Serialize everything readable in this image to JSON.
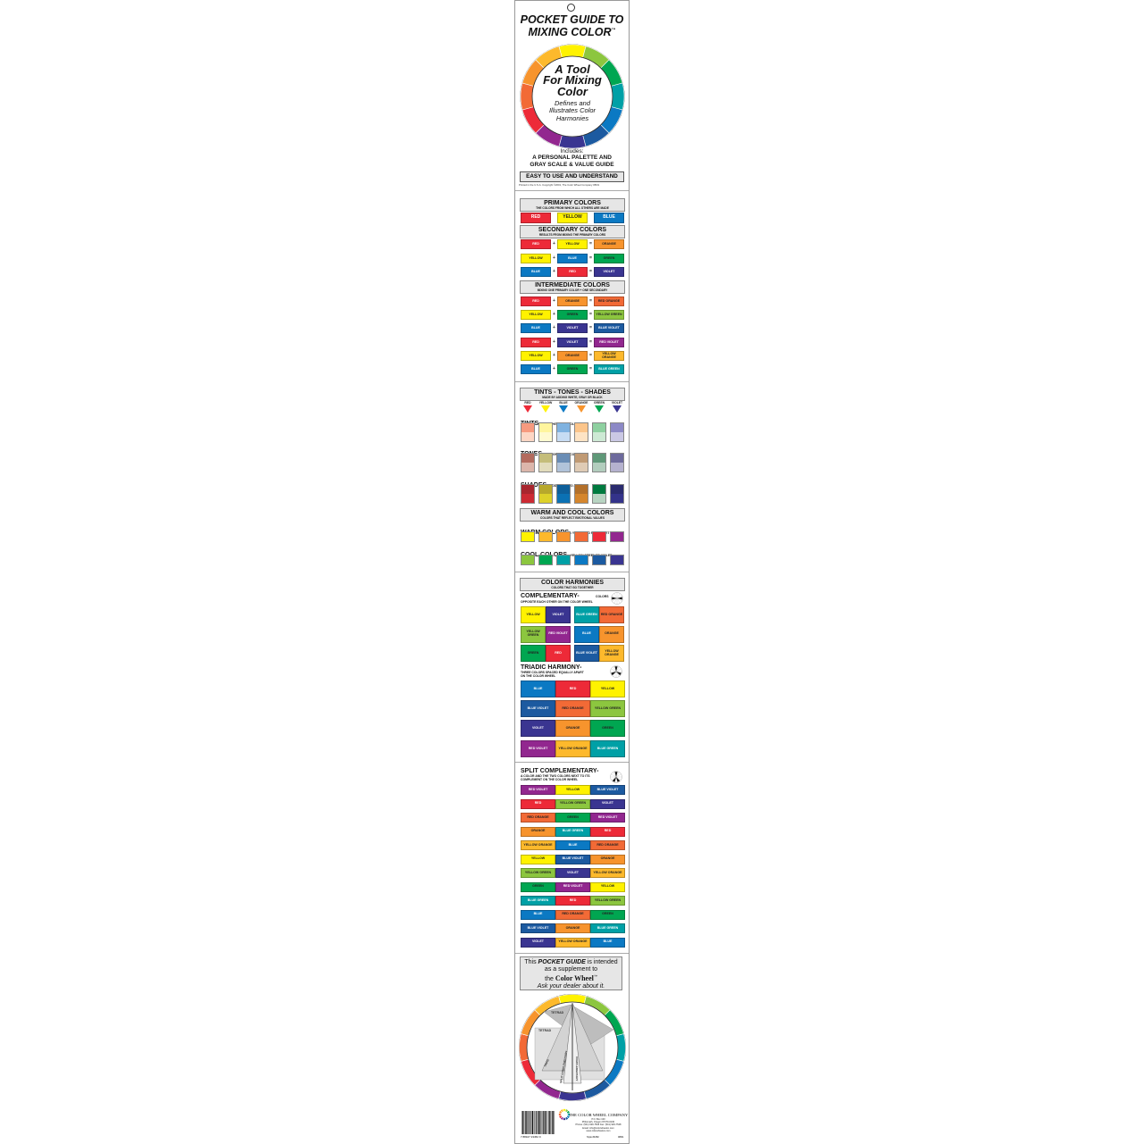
{
  "colors": {
    "red": "#ed2a38",
    "yellow": "#fff200",
    "blue": "#0b79c3",
    "orange": "#f7942d",
    "green": "#00a651",
    "violet": "#3a3591",
    "red-orange": "#f26a36",
    "yellow-orange": "#fdb92c",
    "yellow-green": "#8cc63f",
    "blue-green": "#00a0a6",
    "blue-violet": "#1c5aa0",
    "red-violet": "#92278f"
  },
  "cover": {
    "title_line1": "POCKET GUIDE TO",
    "title_line2": "MIXING COLOR",
    "tm": "™",
    "wheel_center_line1": "A Tool",
    "wheel_center_line2": "For Mixing",
    "wheel_center_line3": "Color",
    "wheel_sub_line1": "Defines and",
    "wheel_sub_line2": "Illustrates Color",
    "wheel_sub_line3": "Harmonies",
    "includes": "Includes:",
    "includes_line1": "A PERSONAL PALETTE AND",
    "includes_line2": "GRAY SCALE & VALUE GUIDE",
    "easy": "EASY TO USE AND UNDERSTAND",
    "copyright": "Printed in the U.S.A.   Copyright ©2001, The Color Wheel Company   08/01"
  },
  "wheel_order": [
    "yellow",
    "yellow-green",
    "green",
    "blue-green",
    "blue",
    "blue-violet",
    "violet",
    "red-violet",
    "red",
    "red-orange",
    "orange",
    "yellow-orange"
  ],
  "primary": {
    "title": "PRIMARY COLORS",
    "subtitle": "THE COLORS FROM WHICH ALL OTHERS ARE MADE",
    "items": [
      "RED",
      "YELLOW",
      "BLUE"
    ]
  },
  "secondary": {
    "title": "SECONDARY COLORS",
    "subtitle": "RESULTS FROM MIXING THE PRIMARY COLORS",
    "rows": [
      [
        "RED",
        "YELLOW",
        "ORANGE"
      ],
      [
        "YELLOW",
        "BLUE",
        "GREEN"
      ],
      [
        "BLUE",
        "RED",
        "VIOLET"
      ]
    ]
  },
  "intermediate": {
    "title": "INTERMEDIATE COLORS",
    "subtitle": "MIXING ONE PRIMARY COLOR + ONE SECONDARY",
    "rows": [
      [
        "RED",
        "ORANGE",
        "RED ORANGE"
      ],
      [
        "YELLOW",
        "GREEN",
        "YELLOW GREEN"
      ],
      [
        "BLUE",
        "VIOLET",
        "BLUE VIOLET"
      ],
      [
        "RED",
        "VIOLET",
        "RED VIOLET"
      ],
      [
        "YELLOW",
        "ORANGE",
        "YELLOW ORANGE"
      ],
      [
        "BLUE",
        "GREEN",
        "BLUE GREEN"
      ]
    ]
  },
  "plus": "+",
  "equals": "=",
  "tts": {
    "title": "TINTS - TONES - SHADES",
    "subtitle": "MADE BY ADDING WHITE, GRAY OR BLACK",
    "hues": [
      "RED",
      "YELLOW",
      "BLUE",
      "ORANGE",
      "GREEN",
      "VIOLET"
    ],
    "tints_label": "TINTS",
    "tints_note": "= ADD WHITE TO A COLOR",
    "tones_label": "TONES",
    "tones_note": "= ADD GRAY TO A COLOR",
    "shades_label": "SHADES",
    "shades_note": "= ADD BLACK TO A COLOR",
    "tints": [
      [
        "#f79a7f",
        "#fdd6c4"
      ],
      [
        "#fff59d",
        "#fffad0"
      ],
      [
        "#7fb2e0",
        "#c7dcf3"
      ],
      [
        "#fcc58a",
        "#fee3c4"
      ],
      [
        "#8ed0a0",
        "#cde9d4"
      ],
      [
        "#8c89c6",
        "#cac8e4"
      ]
    ],
    "tones": [
      [
        "#b36b5e",
        "#dcb6ab"
      ],
      [
        "#c4bd7a",
        "#e2dcbc"
      ],
      [
        "#6a8db5",
        "#b1c3d9"
      ],
      [
        "#c09a74",
        "#dfcbb5"
      ],
      [
        "#5f9878",
        "#b2cdbd"
      ],
      [
        "#6d6a9c",
        "#b5b2cf"
      ]
    ],
    "shades": [
      [
        "#a8262e",
        "#cc2a33"
      ],
      [
        "#b7a82c",
        "#ddd12a"
      ],
      [
        "#0e5f9a",
        "#0b71b4"
      ],
      [
        "#b3702a",
        "#d5862d"
      ],
      [
        "#007a3f",
        "#b8d4c2"
      ],
      [
        "#2a2b6e",
        "#34338a"
      ]
    ]
  },
  "warm_cool": {
    "title": "WARM AND COOL COLORS",
    "subtitle": "COLORS THAT REFLECT EMOTIONAL VALUES",
    "warm_label": "WARM COLORS",
    "warm_note": "= YELLOW TO RED-VIOLET",
    "warm": [
      "yellow",
      "yellow-orange",
      "orange",
      "red-orange",
      "red",
      "red-violet"
    ],
    "cool_label": "COOL COLORS",
    "cool_note": "= YELLOW-GREEN TO VIOLET",
    "cool": [
      "yellow-green",
      "green",
      "blue-green",
      "blue",
      "blue-violet",
      "violet"
    ]
  },
  "harmonies": {
    "title": "COLOR HARMONIES",
    "subtitle": "COLORS THAT GO TOGETHER",
    "comp_label": "COMPLEMENTARY-",
    "comp_note1": "COLORS",
    "comp_note2": "OPPOSITE EACH OTHER ON THE COLOR WHEEL",
    "comp_pairs": [
      [
        "YELLOW",
        "VIOLET"
      ],
      [
        "BLUE GREEN",
        "RED ORANGE"
      ],
      [
        "YELLOW GREEN",
        "RED VIOLET"
      ],
      [
        "BLUE",
        "ORANGE"
      ],
      [
        "GREEN",
        "RED"
      ],
      [
        "BLUE VIOLET",
        "YELLOW ORANGE"
      ]
    ],
    "triad_label": "TRIADIC HARMONY-",
    "triad_note1": "THREE COLORS SPACED EQUALLY APART",
    "triad_note2": "ON THE COLOR WHEEL",
    "triads": [
      [
        "BLUE",
        "RED",
        "YELLOW"
      ],
      [
        "BLUE VIOLET",
        "RED ORANGE",
        "YELLOW GREEN"
      ],
      [
        "VIOLET",
        "ORANGE",
        "GREEN"
      ],
      [
        "RED VIOLET",
        "YELLOW ORANGE",
        "BLUE GREEN"
      ]
    ]
  },
  "split": {
    "label": "SPLIT COMPLEMENTARY-",
    "note1": "A COLOR AND THE TWO COLORS NEXT TO ITS",
    "note2": "COMPLEMENT ON THE COLOR WHEEL",
    "rows": [
      [
        "RED VIOLET",
        "YELLOW",
        "BLUE VIOLET"
      ],
      [
        "RED",
        "YELLOW GREEN",
        "VIOLET"
      ],
      [
        "RED ORANGE",
        "GREEN",
        "RED VIOLET"
      ],
      [
        "ORANGE",
        "BLUE GREEN",
        "RED"
      ],
      [
        "YELLOW ORANGE",
        "BLUE",
        "RED ORANGE"
      ],
      [
        "YELLOW",
        "BLUE VIOLET",
        "ORANGE"
      ],
      [
        "YELLOW GREEN",
        "VIOLET",
        "YELLOW ORANGE"
      ],
      [
        "GREEN",
        "RED VIOLET",
        "YELLOW"
      ],
      [
        "BLUE GREEN",
        "RED",
        "YELLOW GREEN"
      ],
      [
        "BLUE",
        "RED ORANGE",
        "GREEN"
      ],
      [
        "BLUE VIOLET",
        "ORANGE",
        "BLUE GREEN"
      ],
      [
        "VIOLET",
        "YELLOW ORANGE",
        "BLUE"
      ]
    ]
  },
  "back": {
    "note_pre": "This ",
    "note_em": "POCKET GUIDE",
    "note_post": " is intended",
    "note_line2": "as a supplement to",
    "note_line3_pre": "the ",
    "note_line3_brand": "Color Wheel",
    "note_line3_tm": "™",
    "note_line4": "Ask your dealer about it.",
    "wheel_labels": {
      "tetrad1": "TETRAD",
      "tetrad2": "TETRAD",
      "triad": "TRIAD",
      "split": "SPLIT COMPLEMENTARY",
      "comp": "COMPLEMENTARY"
    },
    "company": "THE COLOR WHEEL COMPANY",
    "address_lines": [
      "P.O. Box 130",
      "Philomath, Oregon 97370-0130",
      "Phone: (541) 929-7526   Fax: (541) 929-7528",
      "Email: info@colorwheelco.com",
      "www.colorwheelco.com"
    ],
    "barcode_number": "7 88107 23452 9",
    "style": "Style #3452",
    "date": "08/01"
  }
}
